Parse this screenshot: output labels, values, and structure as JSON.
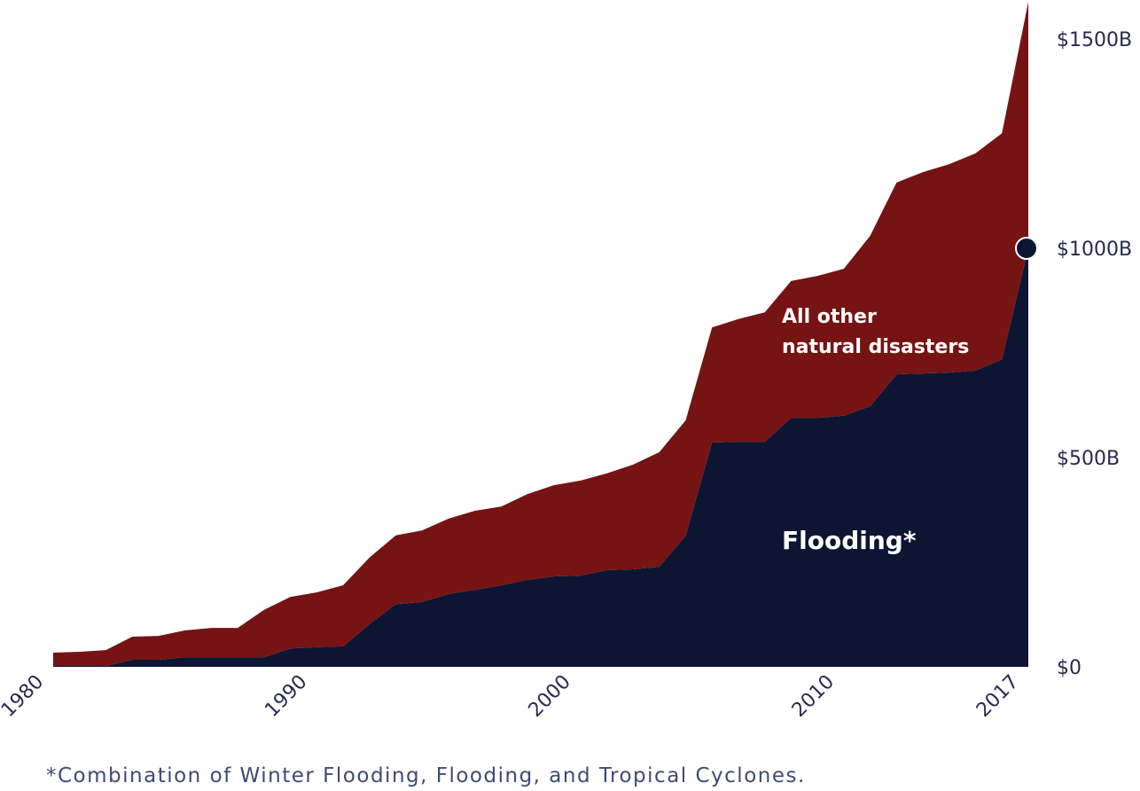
{
  "chart_data": {
    "type": "area",
    "stacked": true,
    "title": "",
    "xlabel": "",
    "ylabel": "",
    "x": [
      1980,
      1981,
      1982,
      1983,
      1984,
      1985,
      1986,
      1987,
      1988,
      1989,
      1990,
      1991,
      1992,
      1993,
      1994,
      1995,
      1996,
      1997,
      1998,
      1999,
      2000,
      2001,
      2002,
      2003,
      2004,
      2005,
      2006,
      2007,
      2008,
      2009,
      2010,
      2011,
      2012,
      2013,
      2014,
      2015,
      2016,
      2017
    ],
    "series": [
      {
        "name": "Flooding*",
        "color": "#0c1633",
        "values": [
          2,
          2,
          2,
          17,
          17,
          23,
          23,
          23,
          23,
          44,
          47,
          49,
          102,
          150,
          155,
          174,
          184,
          195,
          208,
          216,
          218,
          231,
          233,
          239,
          314,
          536,
          538,
          538,
          595,
          595,
          600,
          623,
          699,
          701,
          703,
          708,
          735,
          1000
        ]
      },
      {
        "name": "All other natural disasters",
        "color": "#761313",
        "values": [
          32,
          34,
          38,
          55,
          57,
          64,
          70,
          70,
          113,
          123,
          131,
          146,
          159,
          164,
          171,
          180,
          189,
          188,
          205,
          218,
          227,
          231,
          250,
          274,
          275,
          275,
          293,
          309,
          327,
          339,
          351,
          407,
          458,
          481,
          498,
          519,
          540,
          589
        ]
      }
    ],
    "series_labels": {
      "flooding": "Flooding*",
      "other_line1": "All other",
      "other_line2": "natural disasters"
    },
    "xlim": [
      1980,
      2017
    ],
    "ylim": [
      0,
      1589
    ],
    "x_ticks": [
      1980,
      1990,
      2000,
      2010,
      2017
    ],
    "x_tick_labels": [
      "1980",
      "1990",
      "2000",
      "2010",
      "2017"
    ],
    "y_ticks": [
      0,
      500,
      1000,
      1500
    ],
    "y_tick_labels": [
      "$0",
      "$500B",
      "$1000B",
      "$1500B"
    ],
    "highlight_point": {
      "x": 2017,
      "y": 1000,
      "color": "#0c1633"
    },
    "grid": false,
    "legend": "inline labels"
  },
  "footnote": "*Combination of Winter Flooding, Flooding, and Tropical Cyclones."
}
